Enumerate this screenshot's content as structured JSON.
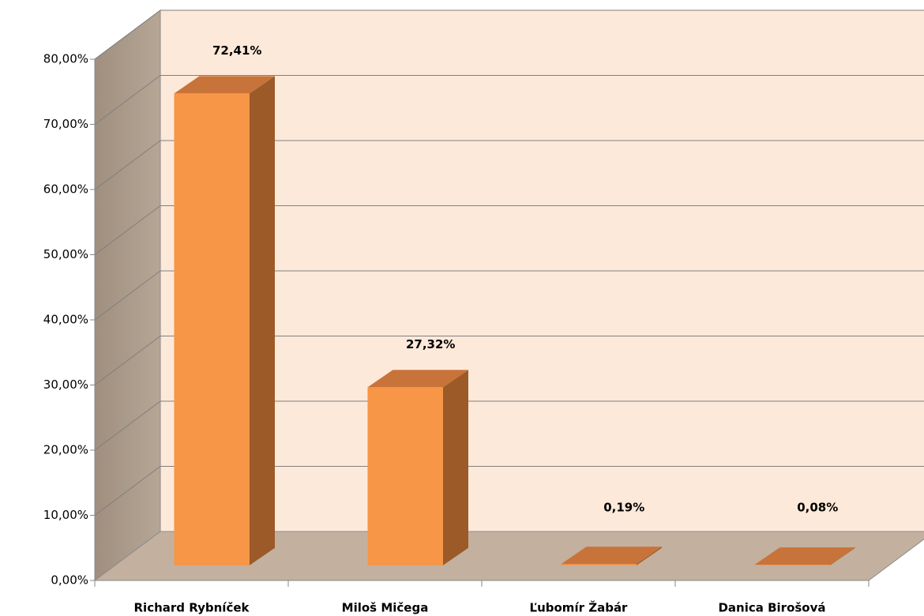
{
  "chart_data": {
    "type": "bar3d",
    "categories": [
      "Richard Rybníček",
      "Miloš Mičega",
      "Ľubomír Žabár",
      "Danica Birošová"
    ],
    "values": [
      72.41,
      27.32,
      0.19,
      0.08
    ],
    "value_labels": [
      "72,41%",
      "27,32%",
      "0,19%",
      "0,08%"
    ],
    "color": "#f79646",
    "ylim": [
      0,
      80
    ],
    "yticks": [
      {
        "value": 0,
        "label": "0,00%"
      },
      {
        "value": 10,
        "label": "10,00%"
      },
      {
        "value": 20,
        "label": "20,00%"
      },
      {
        "value": 30,
        "label": "30,00%"
      },
      {
        "value": 40,
        "label": "40,00%"
      },
      {
        "value": 50,
        "label": "50,00%"
      },
      {
        "value": 60,
        "label": "60,00%"
      },
      {
        "value": 70,
        "label": "70,00%"
      },
      {
        "value": 80,
        "label": "80,00%"
      }
    ],
    "grid": true
  }
}
